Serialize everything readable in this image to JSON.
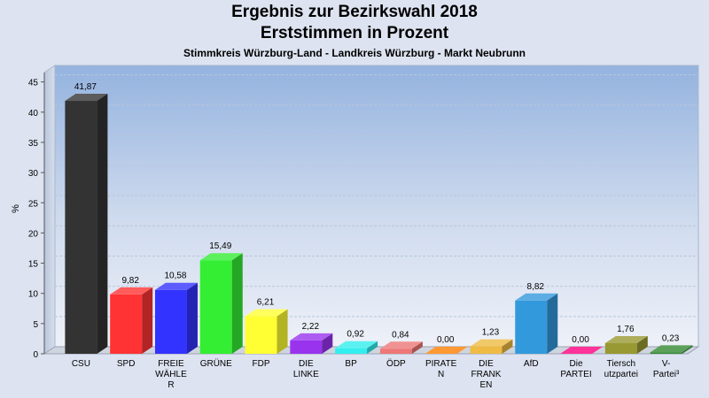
{
  "chart_data": {
    "type": "bar",
    "title": "Ergebnis zur Bezirkswahl 2018",
    "title_line2": "Erststimmen in Prozent",
    "subtitle": "Stimmkreis Würzburg-Land - Landkreis Würzburg - Markt Neubrunn",
    "ylabel": "%",
    "ylim": [
      0,
      47
    ],
    "yticks": [
      0,
      5,
      10,
      15,
      20,
      25,
      30,
      35,
      40,
      45
    ],
    "grid": true,
    "categories": [
      [
        "CSU"
      ],
      [
        "SPD"
      ],
      [
        "FREIE",
        "WÄHLE",
        "R"
      ],
      [
        "GRÜNE"
      ],
      [
        "FDP"
      ],
      [
        "DIE",
        "LINKE"
      ],
      [
        "BP"
      ],
      [
        "ÖDP"
      ],
      [
        "PIRATE",
        "N"
      ],
      [
        "DIE",
        "FRANK",
        "EN"
      ],
      [
        "AfD"
      ],
      [
        "Die",
        "PARTEI"
      ],
      [
        "Tiersch",
        "utzpartei"
      ],
      [
        "V-",
        "Partei³"
      ]
    ],
    "values": [
      41.87,
      9.82,
      10.58,
      15.49,
      6.21,
      2.22,
      0.92,
      0.84,
      0.0,
      1.23,
      8.82,
      0.0,
      1.76,
      0.23
    ],
    "value_labels": [
      "41,87",
      "9,82",
      "10,58",
      "15,49",
      "6,21",
      "2,22",
      "0,92",
      "0,84",
      "0,00",
      "1,23",
      "8,82",
      "0,00",
      "1,76",
      "0,23"
    ],
    "colors": [
      "#333333",
      "#ff3333",
      "#3333ff",
      "#33ee33",
      "#ffff33",
      "#9933ee",
      "#33eeee",
      "#ee7777",
      "#ff9933",
      "#eebb44",
      "#3399dd",
      "#ff3399",
      "#999933",
      "#338833"
    ]
  }
}
